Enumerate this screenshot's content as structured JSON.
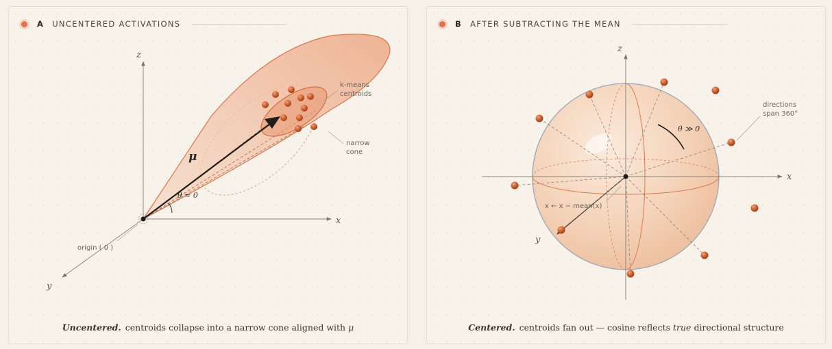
{
  "panel_a": {
    "letter": "A",
    "title": "UNCENTERED ACTIVATIONS",
    "axis_x": "x",
    "axis_y": "y",
    "axis_z": "z",
    "mu": "μ",
    "theta": "θ ≈ 0",
    "label_kmeans_line1": "k-means",
    "label_kmeans_line2": "centroids",
    "label_narrow_line1": "narrow",
    "label_narrow_line2": "cone",
    "label_origin": "origin ( 0 )",
    "caption_lead": "Uncentered.",
    "caption_text": "centroids collapse into a narrow cone aligned with",
    "caption_mu": "μ",
    "colors": {
      "accent": "#e0744a",
      "centroid": "#c85a2a",
      "cone_fill": "#f0c3a6"
    }
  },
  "panel_b": {
    "letter": "B",
    "title": "AFTER SUBTRACTING THE MEAN",
    "axis_x": "x",
    "axis_y": "y",
    "axis_z": "z",
    "theta": "θ ≫ 0",
    "label_dir_line1": "directions",
    "label_dir_line2": "span 360°",
    "label_formula": "x ← x − mean(x)",
    "caption_lead": "Centered.",
    "caption_text1": "centroids fan out — cosine reflects",
    "caption_em": "true",
    "caption_text2": "directional structure",
    "colors": {
      "sphere": "#f3cfb2",
      "sphere_edge": "#9aa6b8"
    }
  }
}
